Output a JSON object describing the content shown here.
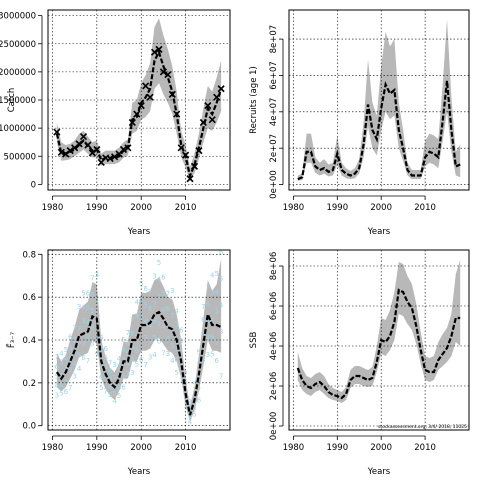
{
  "chart_data": [
    {
      "type": "line",
      "xlabel": "Years",
      "ylabel": "Catch",
      "xlim": [
        1979,
        2020
      ],
      "ylim": [
        -100000,
        3100000
      ],
      "xticks": [
        1980,
        1990,
        2000,
        2010
      ],
      "yticks": [
        0,
        500000,
        1000000,
        1500000,
        2000000,
        2500000,
        3000000
      ],
      "ytick_labels": [
        "0",
        "500000",
        "1000000",
        "1500000",
        "2000000",
        "2500000",
        "3000000"
      ],
      "grid": true,
      "years": [
        1981,
        1982,
        1983,
        1984,
        1985,
        1986,
        1987,
        1988,
        1989,
        1990,
        1991,
        1992,
        1993,
        1994,
        1995,
        1996,
        1997,
        1998,
        1999,
        2000,
        2001,
        2002,
        2003,
        2004,
        2005,
        2006,
        2007,
        2008,
        2009,
        2010,
        2011,
        2012,
        2013,
        2014,
        2015,
        2016,
        2017,
        2018
      ],
      "series": [
        {
          "role": "estimate",
          "values": [
            900000,
            560000,
            550000,
            580000,
            620000,
            700000,
            780000,
            680000,
            600000,
            620000,
            430000,
            470000,
            470000,
            470000,
            500000,
            600000,
            650000,
            1150000,
            1200000,
            1450000,
            1550000,
            1700000,
            2200000,
            2350000,
            2100000,
            1900000,
            1650000,
            1250000,
            700000,
            500000,
            150000,
            350000,
            650000,
            1000000,
            1350000,
            1250000,
            1450000,
            1700000
          ]
        },
        {
          "role": "lower",
          "values": [
            750000,
            420000,
            430000,
            450000,
            500000,
            560000,
            620000,
            540000,
            480000,
            480000,
            330000,
            360000,
            360000,
            360000,
            390000,
            470000,
            520000,
            900000,
            950000,
            1150000,
            1200000,
            1300000,
            1700000,
            1800000,
            1600000,
            1450000,
            1250000,
            900000,
            480000,
            300000,
            60000,
            200000,
            450000,
            750000,
            1000000,
            950000,
            1100000,
            1300000
          ]
        },
        {
          "role": "upper",
          "values": [
            1100000,
            750000,
            700000,
            720000,
            780000,
            900000,
            950000,
            850000,
            750000,
            780000,
            550000,
            600000,
            600000,
            600000,
            650000,
            750000,
            800000,
            1450000,
            1500000,
            1800000,
            1950000,
            2150000,
            2800000,
            2950000,
            2650000,
            2400000,
            2100000,
            1650000,
            950000,
            700000,
            300000,
            550000,
            900000,
            1350000,
            1750000,
            1650000,
            1900000,
            2200000
          ]
        },
        {
          "role": "observed",
          "x": [
            1981,
            1982,
            1983,
            1984,
            1985,
            1986,
            1987,
            1988,
            1989,
            1990,
            1991,
            1992,
            1993,
            1994,
            1995,
            1996,
            1997,
            1998,
            1999,
            2000,
            2001,
            2002,
            2003,
            2004,
            2005,
            2006,
            2007,
            2008,
            2009,
            2010,
            2011,
            2012,
            2013,
            2014,
            2015,
            2016,
            2017,
            2018
          ],
          "values": [
            930000,
            570000,
            540000,
            600000,
            650000,
            720000,
            850000,
            700000,
            560000,
            620000,
            390000,
            470000,
            460000,
            490000,
            540000,
            620000,
            650000,
            1100000,
            1250000,
            1400000,
            1750000,
            1550000,
            2350000,
            2400000,
            2000000,
            1950000,
            1600000,
            1250000,
            650000,
            520000,
            100000,
            320000,
            600000,
            1100000,
            1400000,
            1150000,
            1550000,
            1700000
          ]
        }
      ]
    },
    {
      "type": "line",
      "xlabel": "Years",
      "ylabel": "Recruits (age 1)",
      "xlim": [
        1979,
        2020
      ],
      "ylim": [
        -3000000,
        96000000
      ],
      "xticks": [
        1980,
        1990,
        2000,
        2010
      ],
      "yticks": [
        0,
        20000000,
        40000000,
        60000000,
        80000000
      ],
      "ytick_labels": [
        "0e+00",
        "2e+07",
        "4e+07",
        "6e+07",
        "8e+07"
      ],
      "grid": true,
      "years": [
        1981,
        1982,
        1983,
        1984,
        1985,
        1986,
        1987,
        1988,
        1989,
        1990,
        1991,
        1992,
        1993,
        1994,
        1995,
        1996,
        1997,
        1998,
        1999,
        2000,
        2001,
        2002,
        2003,
        2004,
        2005,
        2006,
        2007,
        2008,
        2009,
        2010,
        2011,
        2012,
        2013,
        2014,
        2015,
        2016,
        2017,
        2018
      ],
      "series": [
        {
          "role": "estimate",
          "values": [
            3000000,
            4000000,
            18000000,
            18000000,
            10000000,
            8000000,
            9000000,
            7000000,
            8000000,
            17000000,
            8000000,
            6000000,
            5000000,
            6000000,
            9000000,
            22000000,
            44000000,
            30000000,
            25000000,
            42000000,
            55000000,
            50000000,
            52000000,
            30000000,
            20000000,
            8000000,
            5000000,
            5000000,
            5000000,
            15000000,
            18000000,
            17000000,
            15000000,
            35000000,
            57000000,
            30000000,
            10000000,
            11000000
          ]
        },
        {
          "role": "lower",
          "values": [
            2000000,
            2500000,
            12000000,
            12000000,
            6500000,
            5000000,
            6000000,
            4500000,
            5000000,
            11000000,
            5000000,
            3500000,
            3000000,
            3500000,
            6000000,
            15000000,
            32000000,
            20000000,
            16000000,
            30000000,
            40000000,
            36000000,
            38000000,
            20000000,
            13000000,
            5000000,
            3000000,
            3000000,
            3000000,
            10000000,
            12000000,
            11000000,
            9000000,
            24000000,
            40000000,
            18000000,
            5000000,
            4000000
          ]
        },
        {
          "role": "upper",
          "values": [
            5000000,
            6000000,
            28000000,
            28000000,
            15000000,
            12000000,
            14000000,
            11000000,
            12000000,
            27000000,
            12000000,
            9000000,
            7500000,
            9000000,
            14000000,
            34000000,
            69000000,
            45000000,
            38000000,
            65000000,
            84000000,
            76000000,
            80000000,
            45000000,
            30000000,
            12000000,
            8000000,
            8000000,
            8000000,
            24000000,
            28000000,
            27000000,
            25000000,
            55000000,
            91000000,
            48000000,
            18000000,
            22000000
          ]
        }
      ]
    },
    {
      "type": "line",
      "xlabel": "Years",
      "ylabel": "F̄₃₋₇",
      "xlim": [
        1979,
        2020
      ],
      "ylim": [
        -0.02,
        0.82
      ],
      "xticks": [
        1980,
        1990,
        2000,
        2010
      ],
      "yticks": [
        0.0,
        0.2,
        0.4,
        0.6,
        0.8
      ],
      "ytick_labels": [
        "0.0",
        "0.2",
        "0.4",
        "0.6",
        "0.8"
      ],
      "grid": true,
      "years": [
        1981,
        1982,
        1983,
        1984,
        1985,
        1986,
        1987,
        1988,
        1989,
        1990,
        1991,
        1992,
        1993,
        1994,
        1995,
        1996,
        1997,
        1998,
        1999,
        2000,
        2001,
        2002,
        2003,
        2004,
        2005,
        2006,
        2007,
        2008,
        2009,
        2010,
        2011,
        2012,
        2013,
        2014,
        2015,
        2016,
        2017,
        2018
      ],
      "series": [
        {
          "role": "estimate",
          "values": [
            0.25,
            0.22,
            0.25,
            0.3,
            0.35,
            0.42,
            0.43,
            0.44,
            0.51,
            0.5,
            0.3,
            0.24,
            0.2,
            0.18,
            0.22,
            0.3,
            0.3,
            0.4,
            0.4,
            0.47,
            0.47,
            0.48,
            0.52,
            0.53,
            0.5,
            0.46,
            0.45,
            0.4,
            0.3,
            0.15,
            0.05,
            0.12,
            0.24,
            0.38,
            0.52,
            0.47,
            0.47,
            0.46
          ]
        },
        {
          "role": "lower",
          "values": [
            0.18,
            0.16,
            0.18,
            0.22,
            0.26,
            0.32,
            0.33,
            0.34,
            0.4,
            0.38,
            0.22,
            0.17,
            0.14,
            0.12,
            0.16,
            0.22,
            0.22,
            0.3,
            0.3,
            0.35,
            0.35,
            0.36,
            0.4,
            0.41,
            0.38,
            0.35,
            0.34,
            0.3,
            0.22,
            0.09,
            0.02,
            0.07,
            0.16,
            0.28,
            0.4,
            0.35,
            0.35,
            0.34
          ]
        },
        {
          "role": "upper",
          "values": [
            0.34,
            0.3,
            0.33,
            0.4,
            0.46,
            0.54,
            0.56,
            0.58,
            0.67,
            0.66,
            0.4,
            0.32,
            0.27,
            0.25,
            0.29,
            0.39,
            0.39,
            0.52,
            0.52,
            0.62,
            0.62,
            0.63,
            0.68,
            0.69,
            0.65,
            0.6,
            0.59,
            0.52,
            0.4,
            0.22,
            0.09,
            0.18,
            0.33,
            0.5,
            0.68,
            0.63,
            0.66,
            0.78
          ]
        }
      ],
      "age_numbers": [
        "3",
        "4",
        "5",
        "6",
        "7"
      ],
      "age_numbers_color": "#9fd3e8"
    },
    {
      "type": "line",
      "xlabel": "Years",
      "ylabel": "SSB",
      "xlim": [
        1979,
        2020
      ],
      "ylim": [
        -200000,
        8800000
      ],
      "xticks": [
        1980,
        1990,
        2000,
        2010
      ],
      "yticks": [
        0,
        2000000,
        4000000,
        6000000,
        8000000
      ],
      "ytick_labels": [
        "0e+00",
        "2e+06",
        "4e+06",
        "6e+06",
        "8e+06"
      ],
      "grid": true,
      "years": [
        1981,
        1982,
        1983,
        1984,
        1985,
        1986,
        1987,
        1988,
        1989,
        1990,
        1991,
        1992,
        1993,
        1994,
        1995,
        1996,
        1997,
        1998,
        1999,
        2000,
        2001,
        2002,
        2003,
        2004,
        2005,
        2006,
        2007,
        2008,
        2009,
        2010,
        2011,
        2012,
        2013,
        2014,
        2015,
        2016,
        2017,
        2018
      ],
      "series": [
        {
          "role": "estimate",
          "values": [
            2900000,
            2300000,
            2000000,
            1900000,
            2100000,
            2200000,
            2000000,
            1700000,
            1550000,
            1500000,
            1400000,
            1600000,
            2300000,
            2500000,
            2500000,
            2400000,
            2300000,
            2400000,
            3200000,
            4300000,
            4200000,
            4500000,
            5200000,
            6800000,
            6700000,
            6200000,
            5900000,
            5000000,
            3800000,
            2800000,
            2700000,
            2700000,
            3300000,
            3600000,
            3900000,
            4500000,
            5400000,
            5400000
          ]
        },
        {
          "role": "lower",
          "values": [
            2300000,
            1800000,
            1600000,
            1500000,
            1700000,
            1800000,
            1600000,
            1400000,
            1300000,
            1250000,
            1150000,
            1300000,
            1900000,
            2100000,
            2100000,
            2000000,
            1950000,
            2000000,
            2700000,
            3600000,
            3500000,
            3800000,
            4300000,
            5600000,
            5500000,
            5100000,
            4800000,
            4100000,
            3100000,
            2300000,
            2200000,
            2300000,
            2800000,
            3000000,
            3200000,
            3500000,
            4200000,
            4000000
          ]
        },
        {
          "role": "upper",
          "values": [
            3700000,
            2900000,
            2500000,
            2400000,
            2600000,
            2700000,
            2500000,
            2100000,
            1900000,
            1800000,
            1700000,
            1950000,
            2800000,
            3000000,
            3000000,
            2900000,
            2800000,
            2950000,
            4000000,
            5400000,
            5300000,
            5800000,
            6700000,
            8200000,
            8100000,
            7500000,
            7100000,
            6100000,
            4700000,
            3500000,
            3400000,
            3500000,
            4200000,
            4600000,
            4900000,
            5600000,
            7600000,
            8300000
          ]
        }
      ],
      "footnote": "stockassessment.org, 3/4/  2018, 11025"
    }
  ]
}
